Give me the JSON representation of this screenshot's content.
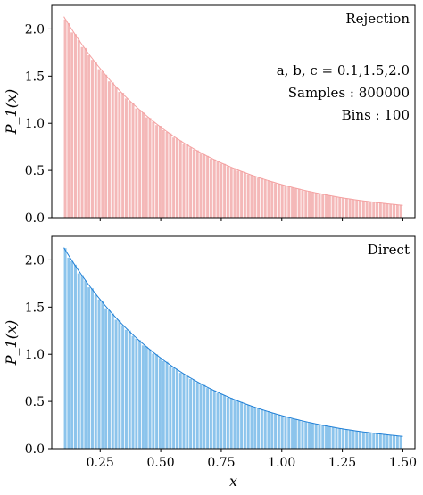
{
  "chart_data": [
    {
      "type": "bar",
      "panel": "top",
      "label": "Rejection",
      "annotations": [
        "a, b, c = 0.1,1.5,2.0",
        "Samples : 800000",
        "Bins : 100"
      ],
      "xlabel": "",
      "ylabel": "P_1(x)",
      "xlim": [
        0.05,
        1.55
      ],
      "ylim": [
        0.0,
        2.25
      ],
      "xticks": [
        0.25,
        0.5,
        0.75,
        1.0,
        1.25,
        1.5
      ],
      "xticklabels": [],
      "yticks": [
        0.0,
        0.5,
        1.0,
        1.5,
        2.0
      ],
      "yticklabels": [
        "0.0",
        "0.5",
        "1.0",
        "1.5",
        "2.0"
      ],
      "bins": {
        "start": 0.1,
        "end": 1.5,
        "count": 100
      },
      "density_curve": {
        "x": [
          0.1,
          0.25,
          0.5,
          0.75,
          1.0,
          1.25,
          1.5
        ],
        "y": [
          2.13,
          1.58,
          0.96,
          0.58,
          0.35,
          0.21,
          0.13
        ]
      },
      "bar_color": "#f4b8b8",
      "curve_color": "#f4a0a0"
    },
    {
      "type": "bar",
      "panel": "bottom",
      "label": "Direct",
      "xlabel": "x",
      "ylabel": "P_1(x)",
      "xlim": [
        0.05,
        1.55
      ],
      "ylim": [
        0.0,
        2.25
      ],
      "xticks": [
        0.25,
        0.5,
        0.75,
        1.0,
        1.25,
        1.5
      ],
      "xticklabels": [
        "0.25",
        "0.50",
        "0.75",
        "1.00",
        "1.25",
        "1.50"
      ],
      "yticks": [
        0.0,
        0.5,
        1.0,
        1.5,
        2.0
      ],
      "yticklabels": [
        "0.0",
        "0.5",
        "1.0",
        "1.5",
        "2.0"
      ],
      "bins": {
        "start": 0.1,
        "end": 1.5,
        "count": 100
      },
      "density_curve": {
        "x": [
          0.1,
          0.25,
          0.5,
          0.75,
          1.0,
          1.25,
          1.5
        ],
        "y": [
          2.13,
          1.58,
          0.96,
          0.58,
          0.35,
          0.21,
          0.13
        ]
      },
      "bar_color": "#8cc4ec",
      "curve_color": "#1f7fd6"
    }
  ]
}
